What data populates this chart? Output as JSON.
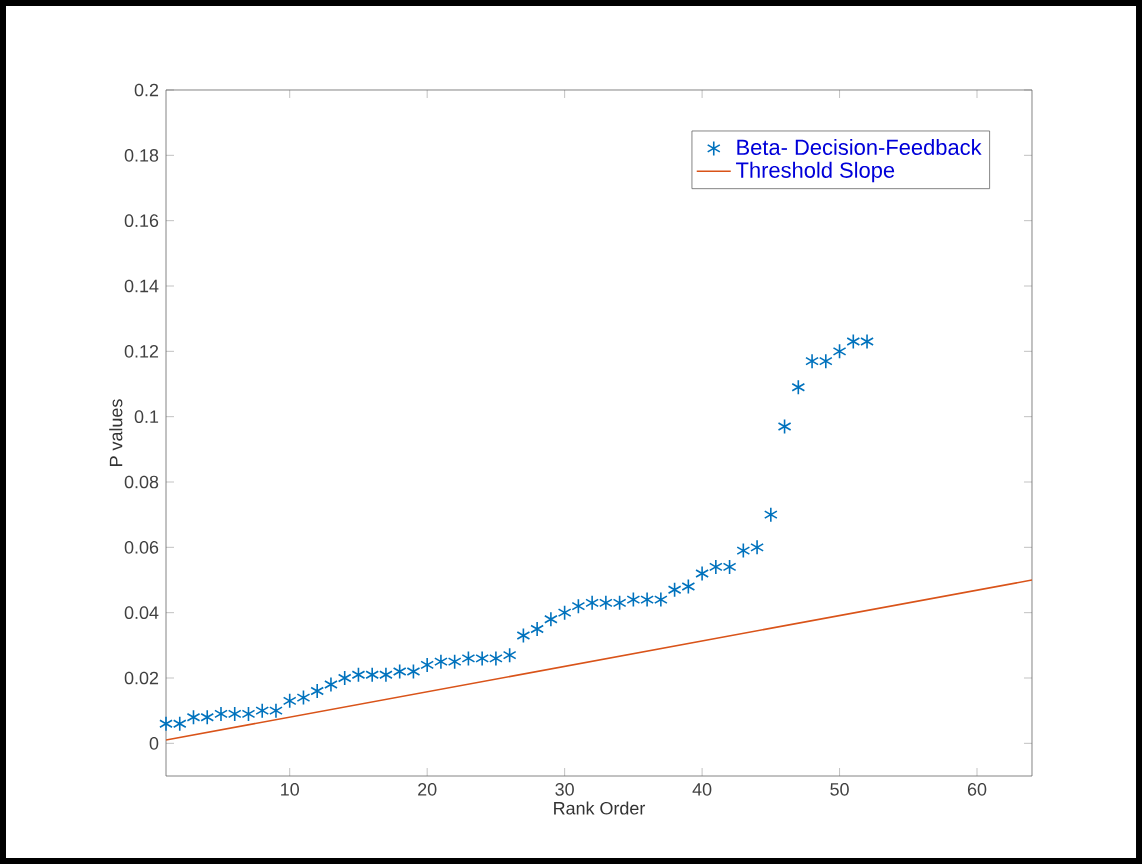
{
  "chart_data": {
    "type": "scatter",
    "xlabel": "Rank Order",
    "ylabel": "P values",
    "xlim": [
      1,
      64
    ],
    "ylim": [
      -0.01,
      0.2
    ],
    "xticks": [
      10,
      20,
      30,
      40,
      50,
      60
    ],
    "yticks": [
      0,
      0.02,
      0.04,
      0.06,
      0.08,
      0.1,
      0.12,
      0.14,
      0.16,
      0.18,
      0.2
    ],
    "legend": "top right",
    "grid": false,
    "series": [
      {
        "name": "Beta- Decision-Feedback",
        "marker": "cross",
        "color": "#0072bd",
        "x": [
          1,
          2,
          3,
          4,
          5,
          6,
          7,
          8,
          9,
          10,
          11,
          12,
          13,
          14,
          15,
          16,
          17,
          18,
          19,
          20,
          21,
          22,
          23,
          24,
          25,
          26,
          27,
          28,
          29,
          30,
          31,
          32,
          33,
          34,
          35,
          36,
          37,
          38,
          39,
          40,
          41,
          42,
          43,
          44,
          45,
          46,
          47,
          48,
          49,
          50,
          51,
          52
        ],
        "values": [
          0.006,
          0.006,
          0.008,
          0.008,
          0.009,
          0.009,
          0.009,
          0.01,
          0.01,
          0.013,
          0.014,
          0.016,
          0.018,
          0.02,
          0.021,
          0.021,
          0.021,
          0.022,
          0.022,
          0.024,
          0.025,
          0.025,
          0.026,
          0.026,
          0.026,
          0.027,
          0.033,
          0.035,
          0.038,
          0.04,
          0.042,
          0.043,
          0.043,
          0.043,
          0.044,
          0.044,
          0.044,
          0.047,
          0.048,
          0.052,
          0.054,
          0.054,
          0.059,
          0.06,
          0.07,
          0.097,
          0.109,
          0.117,
          0.117,
          0.12,
          0.123,
          0.123
        ]
      },
      {
        "name": "Threshold Slope",
        "type": "line",
        "color": "#d95319",
        "x": [
          1,
          64
        ],
        "values": [
          0.001,
          0.05
        ]
      }
    ]
  }
}
